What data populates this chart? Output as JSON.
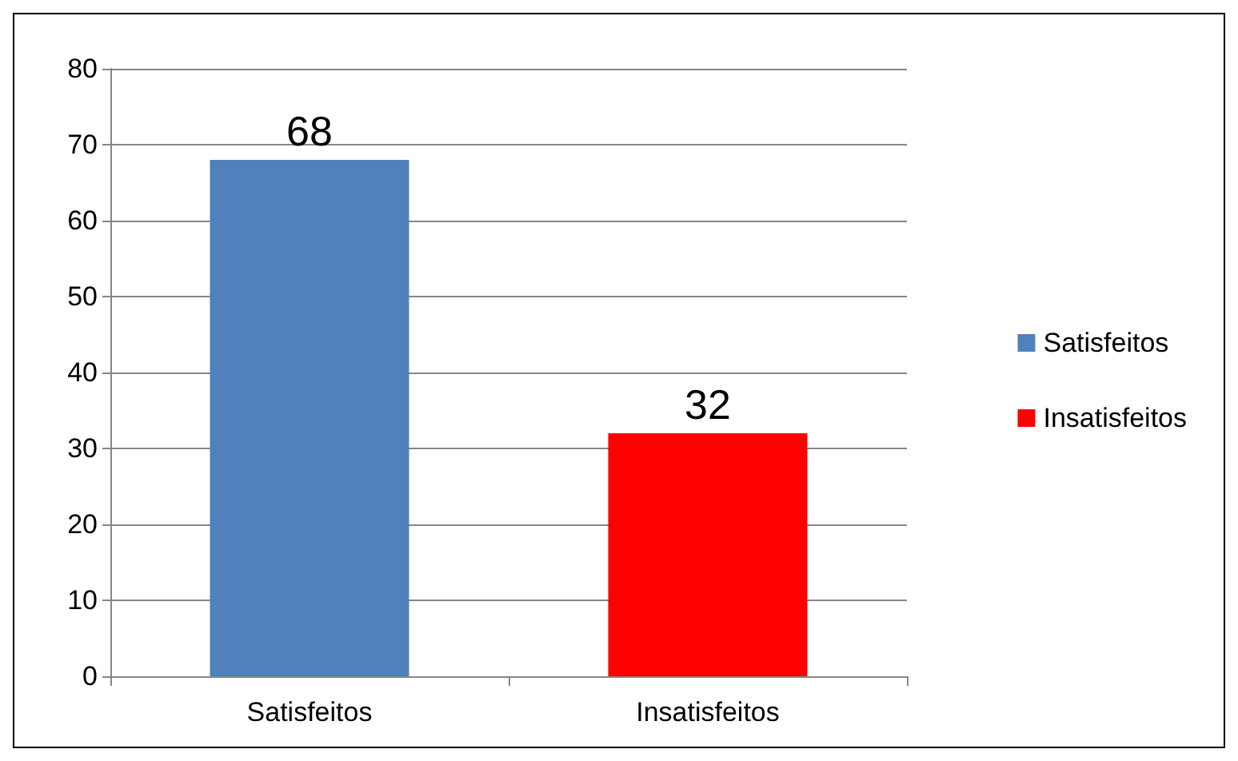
{
  "chart_data": {
    "type": "bar",
    "categories": [
      "Satisfeitos",
      "Insatisfeitos"
    ],
    "series": [
      {
        "name": "Satisfeitos",
        "color": "#4f81bd",
        "values": [
          68,
          null
        ]
      },
      {
        "name": "Insatisfeitos",
        "color": "#ff0000",
        "values": [
          null,
          32
        ]
      }
    ],
    "stacked": true,
    "ylim": [
      0,
      80
    ],
    "yticks": [
      0,
      10,
      20,
      30,
      40,
      50,
      60,
      70,
      80
    ],
    "grid": "y",
    "legend": "right",
    "data_labels": true
  }
}
